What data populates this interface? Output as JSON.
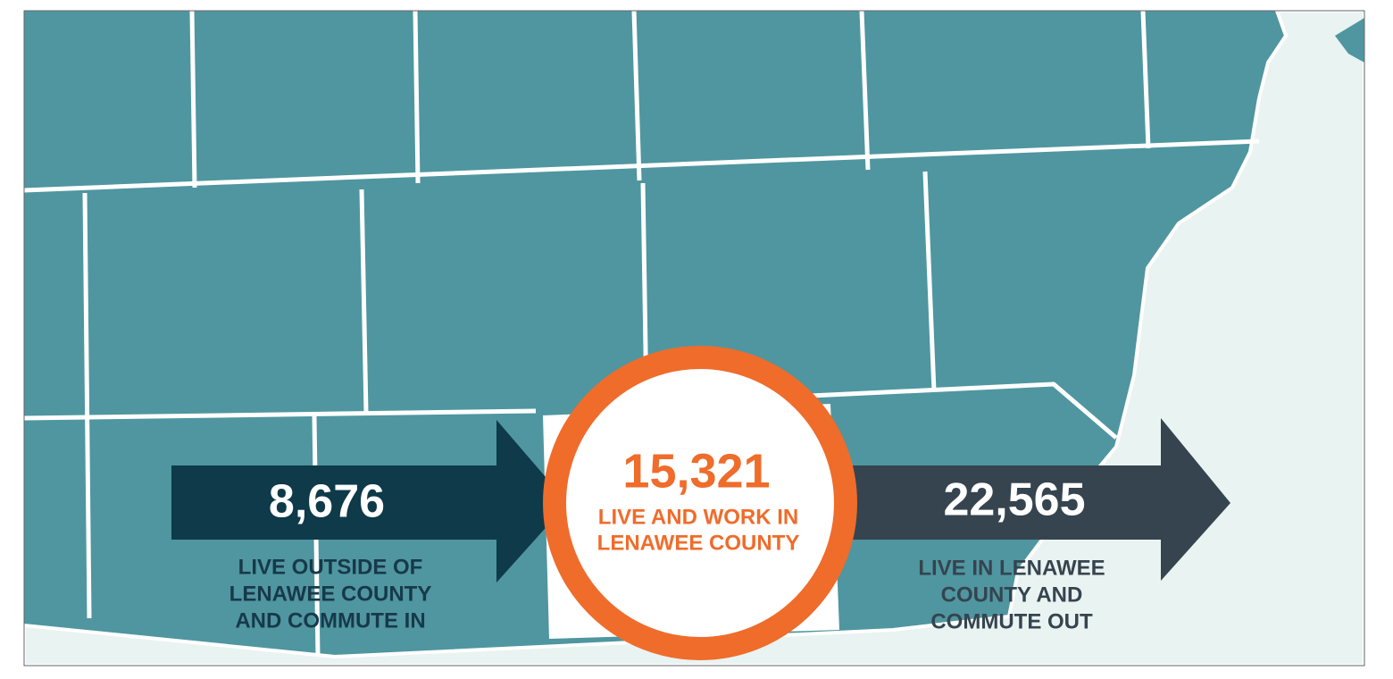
{
  "commute_in": {
    "number": "8,676",
    "label_lines": [
      "LIVE OUTSIDE OF",
      "LENAWEE COUNTY",
      "AND COMMUTE IN"
    ]
  },
  "live_and_work": {
    "number": "15,321",
    "label_lines": [
      "LIVE AND WORK IN",
      "LENAWEE COUNTY"
    ]
  },
  "commute_out": {
    "number": "22,565",
    "label_lines": [
      "LIVE IN LENAWEE",
      "COUNTY AND",
      "COMMUTE OUT"
    ]
  }
}
